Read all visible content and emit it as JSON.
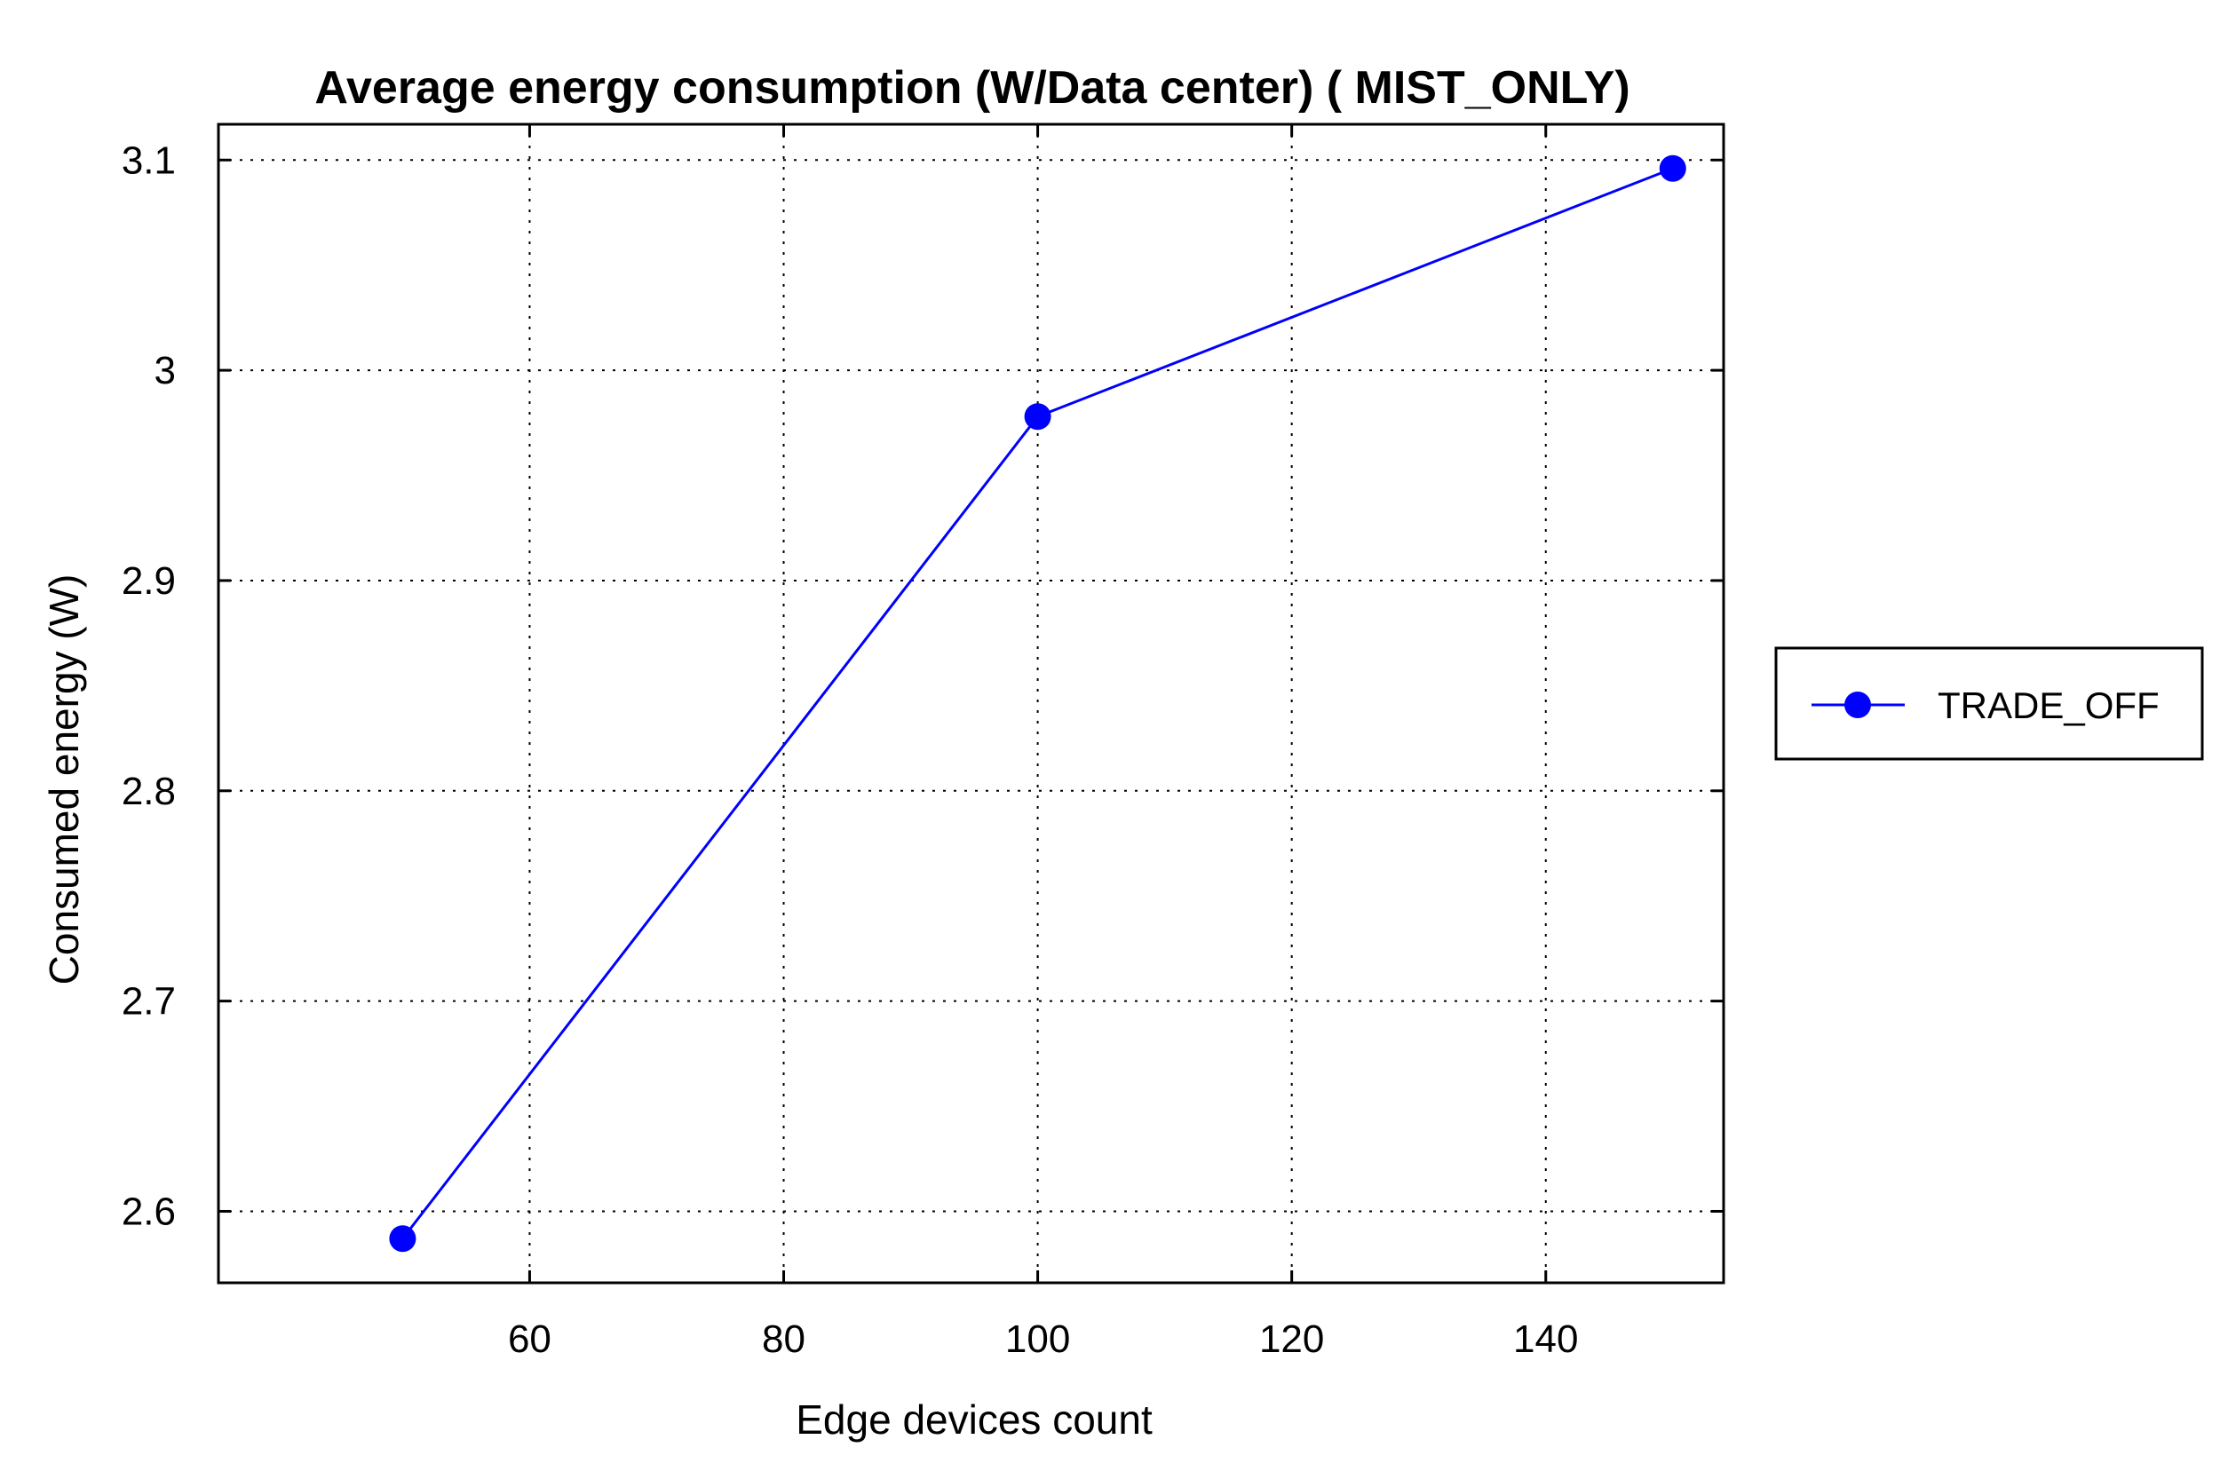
{
  "chart_data": {
    "type": "line",
    "title": "Average energy consumption (W/Data center) ( MIST_ONLY)",
    "xlabel": "Edge devices count",
    "ylabel": "Consumed energy (W)",
    "xlim": [
      35.5,
      154
    ],
    "ylim": [
      2.566,
      3.117
    ],
    "x_ticks": [
      60,
      80,
      100,
      120,
      140
    ],
    "x_tick_labels": [
      "60",
      "80",
      "100",
      "120",
      "140"
    ],
    "y_ticks": [
      2.6,
      2.7,
      2.8,
      2.9,
      3.0,
      3.1
    ],
    "y_tick_labels": [
      "2.6",
      "2.7",
      "2.8",
      "2.9",
      "3",
      "3.1"
    ],
    "grid": true,
    "legend_position": "outside-right",
    "series": [
      {
        "name": "TRADE_OFF",
        "color": "#0000ff",
        "marker": "circle",
        "x": [
          50,
          100,
          150
        ],
        "y": [
          2.587,
          2.978,
          3.096
        ]
      }
    ]
  }
}
